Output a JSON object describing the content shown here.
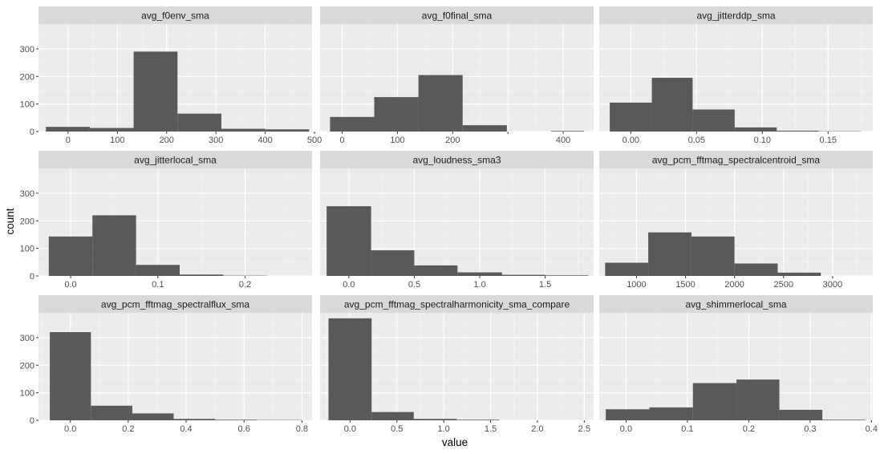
{
  "chart_data": {
    "type": "bar",
    "xlabel": "value",
    "ylabel": "count",
    "shared_y": {
      "ylim": [
        0,
        390
      ],
      "ticks": [
        0,
        100,
        200,
        300
      ]
    },
    "grid": true,
    "panels": [
      {
        "title": "avg_f0env_sma",
        "xlim": [
          -60,
          495
        ],
        "xticks": [
          0,
          100,
          200,
          300,
          400,
          500
        ],
        "xtick_labels": [
          "0",
          "100",
          "200",
          "300",
          "400",
          "500"
        ],
        "bin_edges": [
          -45,
          44,
          133,
          222,
          311,
          400,
          489
        ],
        "values": [
          17,
          13,
          290,
          65,
          10,
          8
        ]
      },
      {
        "title": "avg_f0final_sma",
        "xlim": [
          -40,
          455
        ],
        "xticks": [
          0,
          100,
          200,
          300,
          400
        ],
        "xtick_labels": [
          "0",
          "100",
          "200",
          "",
          "400"
        ],
        "bin_edges": [
          -22,
          58,
          138,
          218,
          298,
          378,
          438
        ],
        "values": [
          53,
          125,
          205,
          23,
          0,
          2
        ]
      },
      {
        "title": "avg_jitterddp_sma",
        "xlim": [
          -0.024,
          0.184
        ],
        "xticks": [
          0.0,
          0.05,
          0.1,
          0.15
        ],
        "xtick_labels": [
          "0.00",
          "0.05",
          "0.10",
          "0.15"
        ],
        "bin_edges": [
          -0.016,
          0.016,
          0.047,
          0.079,
          0.111,
          0.143,
          0.175
        ],
        "values": [
          105,
          195,
          80,
          15,
          3,
          1
        ]
      },
      {
        "title": "avg_jitterlocal_sma",
        "xlim": [
          -0.0368,
          0.2767
        ],
        "xticks": [
          0.0,
          0.1,
          0.2
        ],
        "xtick_labels": [
          "0.0",
          "0.1",
          "0.2"
        ],
        "bin_edges": [
          -0.025,
          0.025,
          0.075,
          0.125,
          0.175,
          0.225,
          0.265
        ],
        "values": [
          143,
          220,
          40,
          5,
          1,
          0
        ]
      },
      {
        "title": "avg_loudness_sma3",
        "xlim": [
          -0.22,
          1.87
        ],
        "xticks": [
          0.0,
          0.5,
          1.0,
          1.5
        ],
        "xtick_labels": [
          "0.0",
          "0.5",
          "1.0",
          "1.5"
        ],
        "bin_edges": [
          -0.17,
          0.17,
          0.5,
          0.83,
          1.17,
          1.5,
          1.83
        ],
        "values": [
          253,
          93,
          38,
          13,
          4,
          2
        ]
      },
      {
        "title": "avg_pcm_fftmag_spectralcentroid_sma",
        "xlim": [
          620,
          3410
        ],
        "xticks": [
          1000,
          1500,
          2000,
          2500,
          3000
        ],
        "xtick_labels": [
          "1000",
          "1500",
          "2000",
          "2500",
          "3000"
        ],
        "bin_edges": [
          680,
          1120,
          1560,
          2000,
          2440,
          2880,
          3320
        ],
        "values": [
          48,
          158,
          143,
          45,
          12,
          0
        ]
      },
      {
        "title": "avg_pcm_fftmag_spectralflux_sma",
        "xlim": [
          -0.11,
          0.835
        ],
        "xticks": [
          0.0,
          0.2,
          0.4,
          0.6,
          0.8
        ],
        "xtick_labels": [
          "0.0",
          "0.2",
          "0.4",
          "0.6",
          "0.8"
        ],
        "bin_edges": [
          -0.071,
          0.071,
          0.214,
          0.357,
          0.5,
          0.643,
          0.786,
          0.8
        ],
        "values": [
          320,
          53,
          25,
          5,
          2,
          1,
          1
        ]
      },
      {
        "title": "avg_pcm_fftmag_spectralharmonicity_sma_compare",
        "xlim": [
          -0.32,
          2.6
        ],
        "xticks": [
          0.0,
          0.5,
          1.0,
          1.5,
          2.0,
          2.5
        ],
        "xtick_labels": [
          "0.0",
          "0.5",
          "1.0",
          "1.5",
          "2.0",
          "2.5"
        ],
        "bin_edges": [
          -0.23,
          0.23,
          0.68,
          1.14,
          1.59,
          2.05,
          2.5
        ],
        "values": [
          370,
          30,
          5,
          2,
          0,
          0
        ]
      },
      {
        "title": "avg_shimmerlocal_sma",
        "xlim": [
          -0.0437,
          0.4022
        ],
        "xticks": [
          0.0,
          0.1,
          0.2,
          0.3,
          0.4
        ],
        "xtick_labels": [
          "0.0",
          "0.1",
          "0.2",
          "0.3",
          "0.4"
        ],
        "bin_edges": [
          -0.033,
          0.038,
          0.109,
          0.18,
          0.25,
          0.32,
          0.39
        ],
        "values": [
          40,
          47,
          135,
          148,
          38,
          2
        ]
      }
    ]
  }
}
